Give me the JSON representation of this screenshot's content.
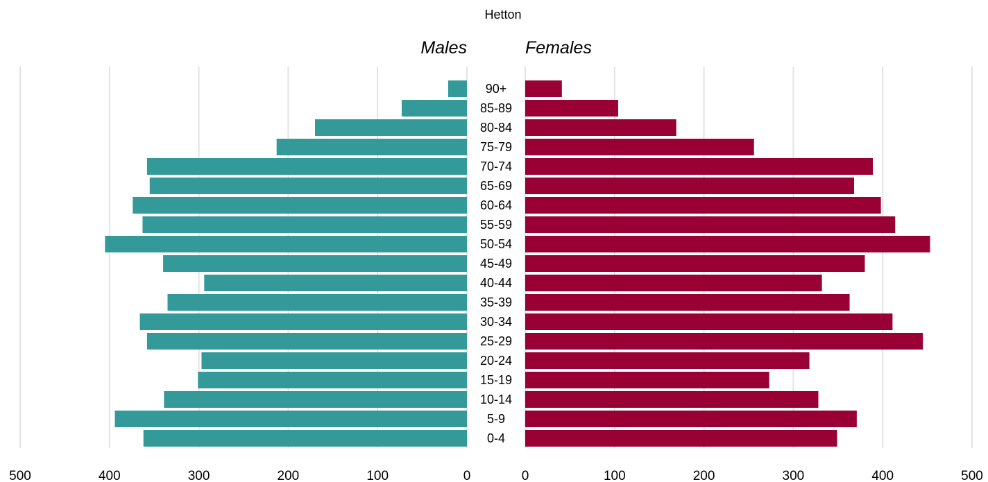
{
  "chart_data": {
    "type": "bar",
    "orientation": "horizontal",
    "layout": "population-pyramid",
    "title": "Hetton",
    "left_title": "Males",
    "right_title": "Females",
    "categories": [
      "90+",
      "85-89",
      "80-84",
      "75-79",
      "70-74",
      "65-69",
      "60-64",
      "55-59",
      "50-54",
      "45-49",
      "40-44",
      "35-39",
      "30-34",
      "25-29",
      "20-24",
      "15-19",
      "10-14",
      "5-9",
      "0-4"
    ],
    "series": [
      {
        "name": "Males",
        "side": "left",
        "color": "#339999",
        "values": [
          21,
          73,
          170,
          213,
          358,
          355,
          374,
          363,
          405,
          340,
          294,
          335,
          366,
          358,
          297,
          301,
          339,
          394,
          362
        ]
      },
      {
        "name": "Females",
        "side": "right",
        "color": "#990033",
        "values": [
          41,
          104,
          169,
          256,
          389,
          368,
          398,
          414,
          453,
          380,
          332,
          363,
          411,
          445,
          318,
          273,
          328,
          371,
          349
        ]
      }
    ],
    "xlim": [
      0,
      500
    ],
    "x_ticks": [
      "500",
      "400",
      "300",
      "200",
      "100",
      "0",
      "0",
      "100",
      "200",
      "300",
      "400",
      "500"
    ],
    "grid": "vertical",
    "legend": "none"
  }
}
